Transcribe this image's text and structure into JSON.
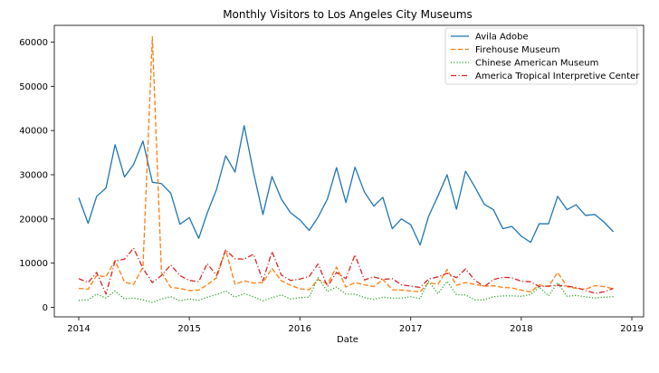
{
  "chart_data": {
    "type": "line",
    "title": "Monthly Visitors to Los Angeles City Museums",
    "xlabel": "Date",
    "ylabel": "",
    "xlim": [
      "2014-01-01",
      "2019-01-01"
    ],
    "ylim": [
      -2000,
      64000
    ],
    "x_ticks": [
      "2014",
      "2015",
      "2016",
      "2017",
      "2018",
      "2019"
    ],
    "y_ticks": [
      0,
      10000,
      20000,
      30000,
      40000,
      50000,
      60000
    ],
    "y_tick_labels": [
      "0",
      "10000",
      "20000",
      "30000",
      "40000",
      "50000",
      "60000"
    ],
    "grid": false,
    "legend_position": "top-right",
    "x_start": "2014-01",
    "x_frequency": "monthly",
    "series": [
      {
        "name": "Avila Adobe",
        "color": "#1f77b4",
        "dash": "solid",
        "values": [
          24800,
          19000,
          25100,
          27000,
          36800,
          29500,
          32300,
          37600,
          28300,
          28000,
          25800,
          18800,
          20300,
          15600,
          21300,
          26700,
          34300,
          30600,
          41100,
          30500,
          21000,
          29600,
          24500,
          21400,
          19800,
          17400,
          20400,
          24500,
          31600,
          23700,
          31700,
          26100,
          22900,
          24900,
          17800,
          20000,
          18700,
          14100,
          20600,
          25200,
          30000,
          22200,
          30800,
          27200,
          23300,
          22100,
          17800,
          18300,
          16100,
          14700,
          18900,
          18900,
          25100,
          22100,
          23200,
          20800,
          21000,
          19300,
          17100
        ]
      },
      {
        "name": "Firehouse Museum",
        "color": "#ff7f0e",
        "dash": "dashed",
        "values": [
          4300,
          4100,
          7200,
          6900,
          10600,
          5700,
          5200,
          9100,
          61200,
          7900,
          4500,
          4300,
          3800,
          3900,
          5100,
          6700,
          13000,
          5200,
          6000,
          5500,
          5600,
          8800,
          6000,
          5000,
          4200,
          4000,
          6300,
          5300,
          9100,
          4600,
          5600,
          5100,
          4700,
          6300,
          4000,
          3900,
          3700,
          3500,
          5600,
          5200,
          8600,
          5000,
          5600,
          5200,
          4800,
          4900,
          4500,
          4400,
          3900,
          3500,
          5100,
          4700,
          7900,
          4700,
          4300,
          4100,
          4900,
          4700,
          4200
        ]
      },
      {
        "name": "Chinese American Museum",
        "color": "#2ca02c",
        "dash": "dotted",
        "values": [
          1600,
          1700,
          3000,
          2100,
          3700,
          1900,
          2100,
          1700,
          1100,
          1900,
          2400,
          1500,
          1900,
          1600,
          2300,
          2900,
          3700,
          2300,
          3100,
          2400,
          1500,
          2200,
          2800,
          1900,
          2200,
          2300,
          6700,
          3600,
          4600,
          3000,
          3000,
          2200,
          1800,
          2300,
          2100,
          2100,
          2400,
          2000,
          5900,
          3100,
          5900,
          2900,
          2800,
          1700,
          1700,
          2400,
          2600,
          2600,
          2500,
          2900,
          4600,
          2600,
          5600,
          2500,
          2700,
          2400,
          2100,
          2300,
          2400
        ]
      },
      {
        "name": "America Tropical Interpretive Center",
        "color": "#d62728",
        "dash": "dashdot",
        "values": [
          6500,
          5600,
          7900,
          3000,
          10500,
          10900,
          13400,
          8800,
          5600,
          7200,
          9600,
          7200,
          6100,
          5800,
          9900,
          7200,
          13000,
          11000,
          10900,
          12000,
          6000,
          12600,
          7300,
          6100,
          6400,
          7000,
          9800,
          4700,
          7900,
          6500,
          11900,
          6200,
          6900,
          6300,
          6500,
          5100,
          4800,
          4500,
          6400,
          6900,
          7700,
          6700,
          8700,
          6100,
          4700,
          6300,
          6800,
          6700,
          5900,
          5800,
          4700,
          4800,
          5000,
          4800,
          4500,
          3800,
          3200,
          3500,
          4300
        ]
      }
    ]
  }
}
